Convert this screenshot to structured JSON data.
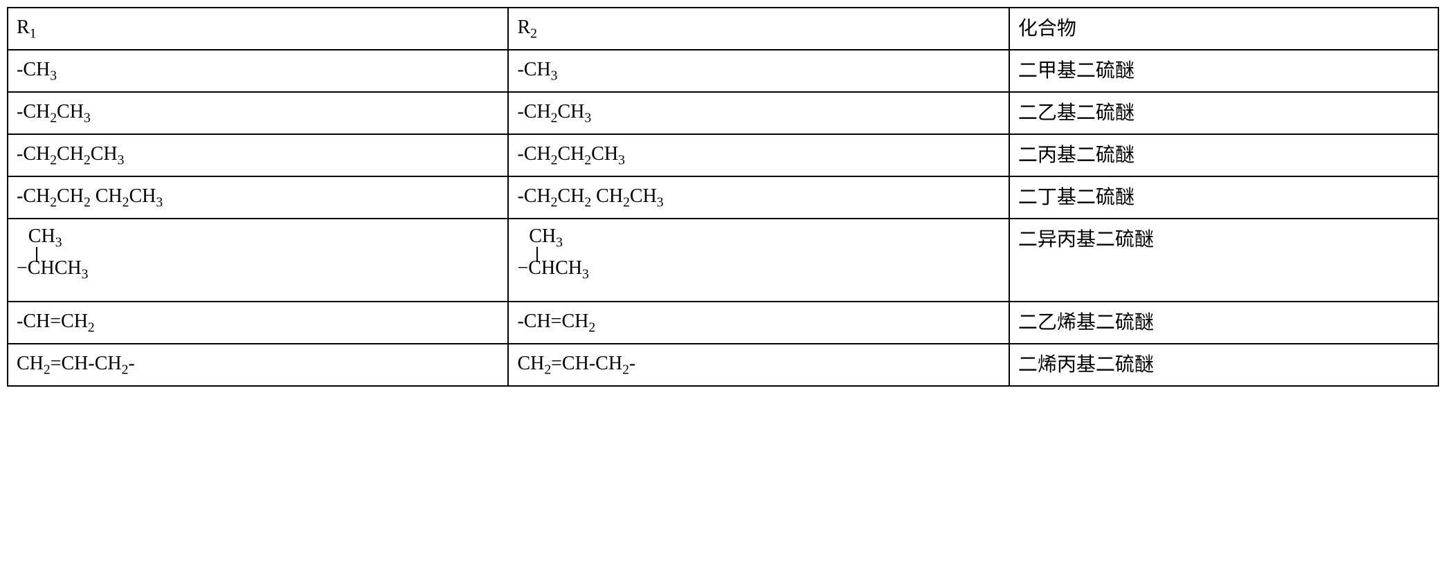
{
  "table": {
    "border_color": "#000000",
    "border_width": 2,
    "background_color": "#ffffff",
    "font_size": 28,
    "font_family": "Times New Roman, SimSun, serif",
    "column_widths": [
      "35%",
      "35%",
      "30%"
    ],
    "headers": {
      "col1_base": "R",
      "col1_sub": "1",
      "col2_base": "R",
      "col2_sub": "2",
      "col3": "化合物"
    },
    "rows": [
      {
        "r1": {
          "type": "simple",
          "parts": [
            {
              "t": "-CH"
            },
            {
              "s": "3"
            }
          ]
        },
        "r2": {
          "type": "simple",
          "parts": [
            {
              "t": "-CH"
            },
            {
              "s": "3"
            }
          ]
        },
        "compound": "二甲基二硫醚"
      },
      {
        "r1": {
          "type": "simple",
          "parts": [
            {
              "t": "-CH"
            },
            {
              "s": "2"
            },
            {
              "t": "CH"
            },
            {
              "s": "3"
            }
          ]
        },
        "r2": {
          "type": "simple",
          "parts": [
            {
              "t": "-CH"
            },
            {
              "s": "2"
            },
            {
              "t": "CH"
            },
            {
              "s": "3"
            }
          ]
        },
        "compound": "二乙基二硫醚"
      },
      {
        "r1": {
          "type": "simple",
          "parts": [
            {
              "t": "-CH"
            },
            {
              "s": "2"
            },
            {
              "t": "CH"
            },
            {
              "s": "2"
            },
            {
              "t": "CH"
            },
            {
              "s": "3"
            }
          ]
        },
        "r2": {
          "type": "simple",
          "parts": [
            {
              "t": "-CH"
            },
            {
              "s": "2"
            },
            {
              "t": "CH"
            },
            {
              "s": "2"
            },
            {
              "t": "CH"
            },
            {
              "s": "3"
            }
          ]
        },
        "compound": "二丙基二硫醚"
      },
      {
        "r1": {
          "type": "simple",
          "parts": [
            {
              "t": "-CH"
            },
            {
              "s": "2"
            },
            {
              "t": "CH"
            },
            {
              "s": "2"
            },
            {
              "t": " CH"
            },
            {
              "s": "2"
            },
            {
              "t": "CH"
            },
            {
              "s": "3"
            }
          ]
        },
        "r2": {
          "type": "simple",
          "parts": [
            {
              "t": "-CH"
            },
            {
              "s": "2"
            },
            {
              "t": "CH"
            },
            {
              "s": "2"
            },
            {
              "t": " CH"
            },
            {
              "s": "2"
            },
            {
              "t": "CH"
            },
            {
              "s": "3"
            }
          ]
        },
        "compound": "二丁基二硫醚"
      },
      {
        "r1": {
          "type": "branched",
          "top": [
            {
              "t": "CH"
            },
            {
              "s": "3"
            }
          ],
          "bottom": [
            {
              "t": "−CHCH"
            },
            {
              "s": "3"
            }
          ]
        },
        "r2": {
          "type": "branched",
          "top": [
            {
              "t": "CH"
            },
            {
              "s": "3"
            }
          ],
          "bottom": [
            {
              "t": "−CHCH"
            },
            {
              "s": "3"
            }
          ]
        },
        "compound": "二异丙基二硫醚"
      },
      {
        "r1": {
          "type": "simple",
          "parts": [
            {
              "t": "-CH=CH"
            },
            {
              "s": "2"
            }
          ]
        },
        "r2": {
          "type": "simple",
          "parts": [
            {
              "t": "-CH=CH"
            },
            {
              "s": "2"
            }
          ]
        },
        "compound": "二乙烯基二硫醚"
      },
      {
        "r1": {
          "type": "simple",
          "parts": [
            {
              "t": "CH"
            },
            {
              "s": "2"
            },
            {
              "t": "=CH-CH"
            },
            {
              "s": "2"
            },
            {
              "t": "-"
            }
          ]
        },
        "r2": {
          "type": "simple",
          "parts": [
            {
              "t": "CH"
            },
            {
              "s": "2"
            },
            {
              "t": "=CH-CH"
            },
            {
              "s": "2"
            },
            {
              "t": "-"
            }
          ]
        },
        "compound": "二烯丙基二硫醚"
      }
    ]
  }
}
